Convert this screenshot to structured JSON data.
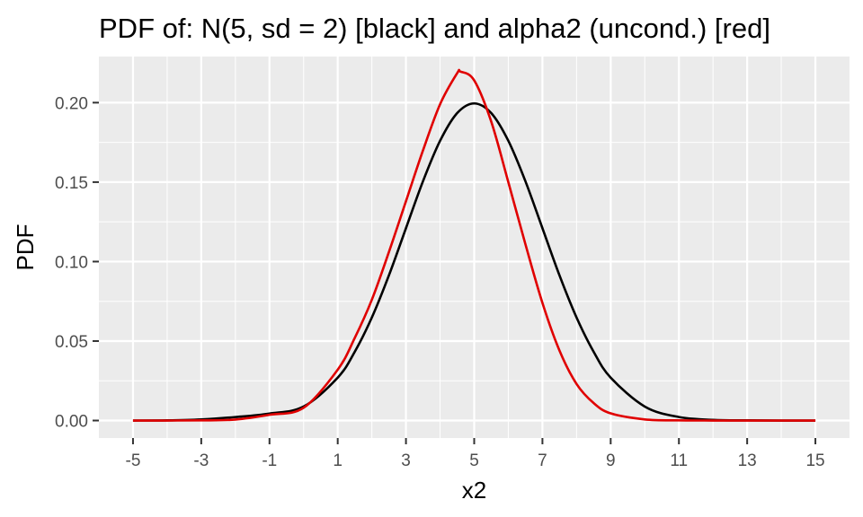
{
  "chart_data": {
    "type": "line",
    "title": "PDF of: N(5, sd = 2) [black] and alpha2 (uncond.) [red]",
    "xlabel": "x2",
    "ylabel": "PDF",
    "xlim": [
      -6,
      16
    ],
    "ylim": [
      -0.011,
      0.229
    ],
    "x_ticks": [
      -5,
      -3,
      -1,
      1,
      3,
      5,
      7,
      9,
      11,
      13,
      15
    ],
    "y_ticks": [
      0,
      0.05,
      0.1,
      0.15,
      0.2
    ],
    "x_tick_labels": [
      "-5",
      "-3",
      "-1",
      "1",
      "3",
      "5",
      "7",
      "9",
      "11",
      "13",
      "15"
    ],
    "y_tick_labels": [
      "0.00",
      "0.05",
      "0.10",
      "0.15",
      "0.20"
    ],
    "grid": true,
    "background": "#ebebeb",
    "grid_color": "#ffffff",
    "series": [
      {
        "color": "#000000",
        "x": [
          -5,
          -4,
          -3,
          -2,
          -1,
          0,
          1,
          1.5,
          2,
          2.5,
          3,
          3.5,
          4,
          4.5,
          5,
          5.5,
          6,
          6.5,
          7,
          7.5,
          8,
          8.5,
          9,
          10,
          11,
          12,
          13,
          14,
          15
        ],
        "y": [
          0.0,
          0.0001,
          0.0007,
          0.0022,
          0.0044,
          0.0088,
          0.027,
          0.0433,
          0.0648,
          0.0913,
          0.121,
          0.1506,
          0.176,
          0.1934,
          0.1995,
          0.1934,
          0.176,
          0.1506,
          0.121,
          0.0913,
          0.0648,
          0.0433,
          0.027,
          0.0088,
          0.0022,
          0.0004,
          0.0001,
          0.0,
          0.0
        ]
      },
      {
        "color": "#e00000",
        "x": [
          -5,
          -4,
          -3,
          -2,
          -1,
          0,
          1,
          1.5,
          2,
          2.5,
          3,
          3.5,
          4,
          4.5,
          4.6,
          5,
          5.5,
          6,
          6.5,
          7,
          7.5,
          8,
          8.5,
          9,
          10,
          11,
          12,
          13,
          15
        ],
        "y": [
          0.0,
          0.0,
          0.0001,
          0.0006,
          0.0036,
          0.008,
          0.032,
          0.052,
          0.076,
          0.106,
          0.138,
          0.17,
          0.199,
          0.2185,
          0.2195,
          0.214,
          0.188,
          0.15,
          0.111,
          0.074,
          0.044,
          0.023,
          0.011,
          0.0045,
          0.0007,
          0.0001,
          0.0,
          0.0,
          0.0
        ]
      }
    ]
  }
}
